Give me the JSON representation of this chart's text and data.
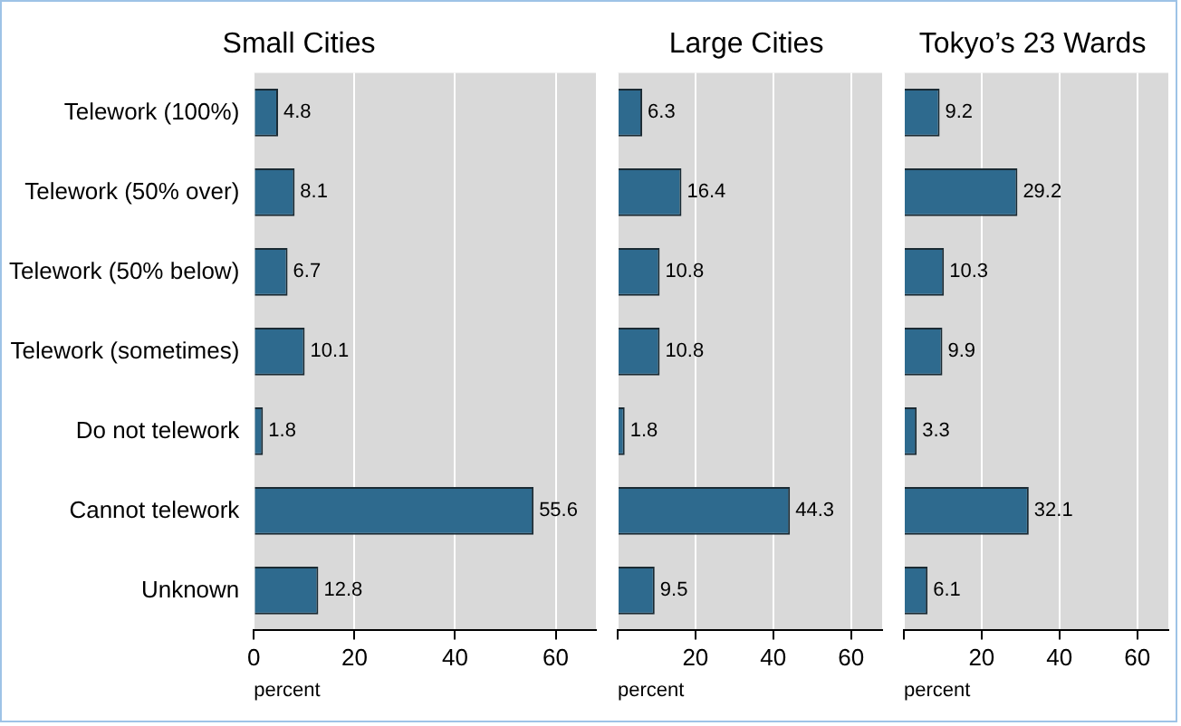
{
  "chart_data": [
    {
      "type": "bar",
      "orientation": "horizontal",
      "title": "Small Cities",
      "xlabel": "percent",
      "categories": [
        "Telework (100%)",
        "Telework (50% over)",
        "Telework (50% below)",
        "Telework (sometimes)",
        "Do not telework",
        "Cannot telework",
        "Unknown"
      ],
      "values": [
        4.8,
        8.1,
        6.7,
        10.1,
        1.8,
        55.6,
        12.8
      ],
      "color": "#2e6a8e",
      "xlim": [
        0,
        68
      ],
      "xticks": [
        0,
        20,
        40,
        60
      ],
      "grid": "x",
      "data_labels": true
    },
    {
      "type": "bar",
      "orientation": "horizontal",
      "title": "Large Cities",
      "xlabel": "percent",
      "categories": [
        null,
        null,
        null,
        null,
        null,
        null,
        null
      ],
      "values": [
        6.3,
        16.4,
        10.8,
        10.8,
        1.8,
        44.3,
        9.5
      ],
      "color": "#2e6a8e",
      "xlim": [
        0,
        68
      ],
      "xticks": [
        {
          "value": 0,
          "label": null
        },
        20,
        40,
        60
      ],
      "grid": "x",
      "data_labels": true,
      "tick_labels": "x"
    },
    {
      "type": "bar",
      "orientation": "horizontal",
      "title": "Tokyo’s 23 Wards",
      "xlabel": "percent",
      "categories": [
        null,
        null,
        null,
        null,
        null,
        null,
        null
      ],
      "values": [
        9.2,
        29.2,
        10.3,
        9.9,
        3.3,
        32.1,
        6.1
      ],
      "color": "#2e6a8e",
      "xlim": [
        0,
        68
      ],
      "xticks": [
        {
          "value": 0,
          "label": null
        },
        20,
        40,
        60
      ],
      "grid": "x",
      "data_labels": true,
      "tick_labels": "x"
    }
  ]
}
